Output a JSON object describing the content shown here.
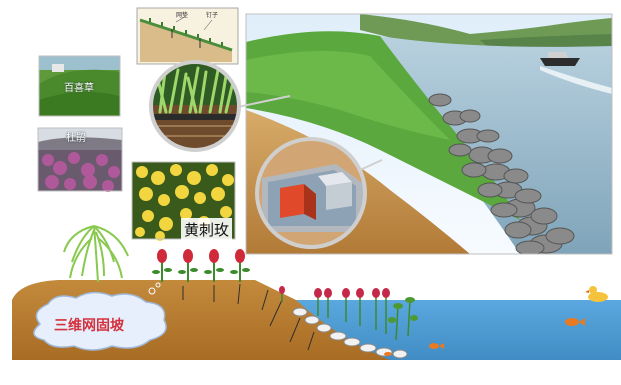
{
  "plants": {
    "baixicao": "百喜草",
    "dujuan": "杜鹃",
    "huangciqui": "黄刺玫"
  },
  "cross_section_labels": {
    "mesh": "网垫",
    "stake": "钉子"
  },
  "slope": {
    "label": "三维网固坡"
  },
  "colors": {
    "water": "#4d9ed6",
    "soil": "#b7782e",
    "soil_dark": "#8c5516",
    "grass": "#58a83a",
    "cloud": "#e3eefb",
    "label_red": "#d3313d"
  }
}
